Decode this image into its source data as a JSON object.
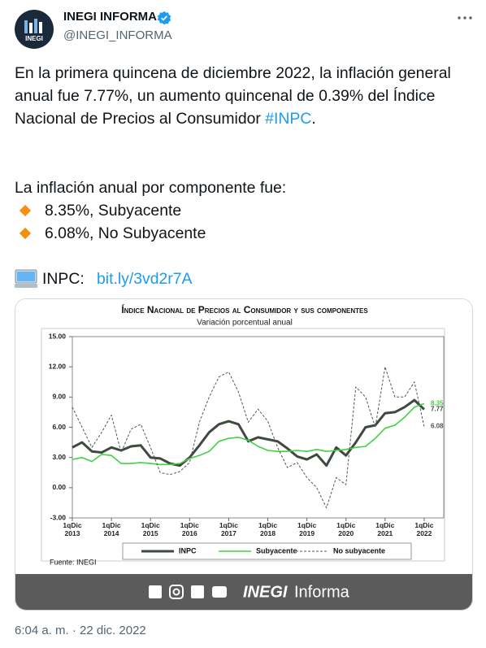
{
  "tweet": {
    "name": "INEGI INFORMA",
    "handle": "@INEGI_INFORMA",
    "text_1": "En la primera quincena de diciembre 2022, la inflación general anual fue 7.77%, un aumento quincenal de 0.39% del Índice Nacional de Precios al Consumidor ",
    "hashtag": "#INPC",
    "text_1_end": ".",
    "text_2": "La inflación anual por componente fue:",
    "bullets": [
      "8.35%, Subyacente",
      "6.08%, No Subyacente"
    ],
    "link_label": "INPC:",
    "link": "bit.ly/3vd2r7A",
    "timestamp": "6:04 a. m. · 22 dic. 2022"
  },
  "chart_data": {
    "type": "line",
    "title": "Índice Nacional de Precios al Consumidor y sus componentes",
    "subtitle": "Variación porcentual anual",
    "source": "Fuente: INEGI",
    "x": [
      2013,
      2013.25,
      2013.5,
      2013.75,
      2014,
      2014.25,
      2014.5,
      2014.75,
      2015,
      2015.25,
      2015.5,
      2015.75,
      2016,
      2016.25,
      2016.5,
      2016.75,
      2017,
      2017.25,
      2017.5,
      2017.75,
      2018,
      2018.25,
      2018.5,
      2018.75,
      2019,
      2019.25,
      2019.5,
      2019.75,
      2020,
      2020.25,
      2020.5,
      2020.75,
      2021,
      2021.25,
      2021.5,
      2021.75,
      2022
    ],
    "xlim": [
      2013,
      2022.5
    ],
    "xticks": [
      {
        "value": 2013,
        "label": "1qDic 2013"
      },
      {
        "value": 2014,
        "label": "1qDic 2014"
      },
      {
        "value": 2015,
        "label": "1qDic 2015"
      },
      {
        "value": 2016,
        "label": "1qDic 2016"
      },
      {
        "value": 2017,
        "label": "1qDic 2017"
      },
      {
        "value": 2018,
        "label": "1qDic 2018"
      },
      {
        "value": 2019,
        "label": "1qDic 2019"
      },
      {
        "value": 2020,
        "label": "1qDic 2020"
      },
      {
        "value": 2021,
        "label": "1qDic 2021"
      },
      {
        "value": 2022,
        "label": "1qDic 2022"
      }
    ],
    "ylim": [
      -3,
      15
    ],
    "yticks": [
      {
        "value": -3,
        "label": "-3.00"
      },
      {
        "value": 0,
        "label": "0.00"
      },
      {
        "value": 3,
        "label": "3.00"
      },
      {
        "value": 6,
        "label": "6.00"
      },
      {
        "value": 9,
        "label": "9.00"
      },
      {
        "value": 12,
        "label": "12.00"
      },
      {
        "value": 15,
        "label": "15.00"
      }
    ],
    "grid": false,
    "series": [
      {
        "name": "INPC",
        "color": "#3d4a3d",
        "width": 3,
        "dashed": false,
        "values": [
          4.0,
          4.5,
          3.6,
          3.5,
          4.0,
          3.7,
          4.1,
          4.2,
          3.0,
          2.9,
          2.4,
          2.2,
          3.0,
          4.2,
          5.5,
          6.3,
          6.6,
          6.3,
          4.6,
          5.0,
          4.8,
          4.6,
          3.9,
          3.1,
          2.8,
          3.3,
          2.2,
          4.0,
          3.2,
          4.5,
          6.0,
          6.2,
          7.4,
          7.5,
          8.0,
          8.7,
          7.77
        ]
      },
      {
        "name": "Subyacente",
        "color": "#3fd33f",
        "width": 1.6,
        "dashed": false,
        "values": [
          2.8,
          3.0,
          2.6,
          3.3,
          3.2,
          2.4,
          2.4,
          2.5,
          2.4,
          2.3,
          2.3,
          2.4,
          2.9,
          3.2,
          3.6,
          4.6,
          4.9,
          5.0,
          4.7,
          4.1,
          3.7,
          3.6,
          3.6,
          3.7,
          3.6,
          3.8,
          3.6,
          3.7,
          3.8,
          4.0,
          4.1,
          4.9,
          5.9,
          6.2,
          7.0,
          8.0,
          8.35
        ]
      },
      {
        "name": "No subyacente",
        "color": "#555555",
        "width": 1,
        "dashed": true,
        "values": [
          8.0,
          6.0,
          4.0,
          5.5,
          7.2,
          3.5,
          5.8,
          6.3,
          4.0,
          1.5,
          1.3,
          1.6,
          2.5,
          6.5,
          9.0,
          11.0,
          11.5,
          9.5,
          6.5,
          7.8,
          6.6,
          4.0,
          2.0,
          2.5,
          1.0,
          0.0,
          -2.0,
          1.0,
          0.3,
          10.0,
          9.0,
          6.0,
          12.0,
          9.0,
          9.0,
          10.5,
          6.08
        ]
      }
    ]
  },
  "banner": {
    "brand_bold": "INEGI",
    "brand": "Informa"
  }
}
